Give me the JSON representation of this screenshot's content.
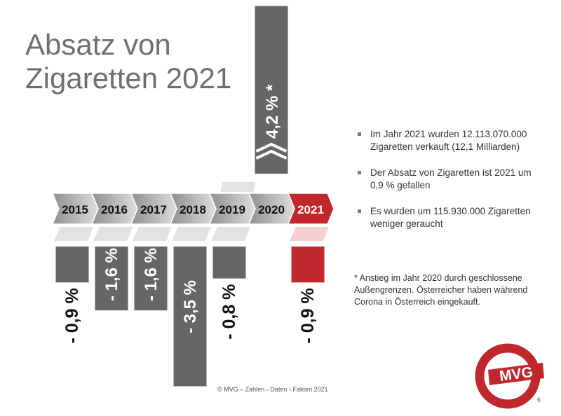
{
  "slide": {
    "title": "Absatz von Zigaretten 2021",
    "bullets": [
      "Im Jahr 2021 wurden 12.113.070.000 Zigaretten verkauft (12,1 Milliarden)",
      "Der Absatz von Zigaretten ist 2021 um 0,9 % gefallen",
      "Es wurden um 115.930.000 Zigaretten weniger geraucht"
    ],
    "footnote": "* Anstieg im Jahr 2020 durch geschlossene Außengrenzen. Österreicher haben während Corona in Österreich eingekauft.",
    "footer": "© MVG – Zahlen ▫ Daten ▫ Fakten 2021",
    "page_number": "6",
    "logo_text": "MVG"
  },
  "colors": {
    "gray_bar": "#666666",
    "red_bar": "#c0282d",
    "arrow_gray_start": "#8f8f8f",
    "arrow_gray_end": "#dedede",
    "highlight_red": "#c0282d"
  },
  "chart_data": {
    "type": "bar",
    "categories": [
      "2015",
      "2016",
      "2017",
      "2018",
      "2019",
      "2020",
      "2021"
    ],
    "values": [
      -0.9,
      -1.6,
      -1.6,
      -3.5,
      -0.8,
      4.2,
      -0.9
    ],
    "labels": [
      "- 0,9 %",
      "- 1,6 %",
      "- 1,6 %",
      "- 3,5 %",
      "- 0,8 %",
      "4,2 % *",
      "- 0,9 %"
    ],
    "highlight": "2021"
  }
}
